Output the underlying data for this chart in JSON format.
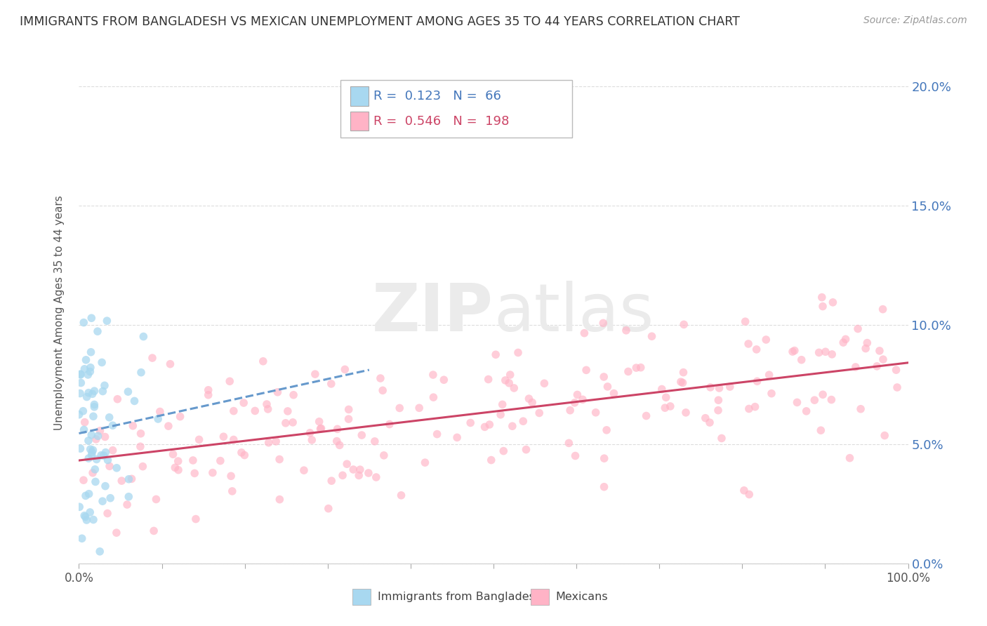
{
  "title": "IMMIGRANTS FROM BANGLADESH VS MEXICAN UNEMPLOYMENT AMONG AGES 35 TO 44 YEARS CORRELATION CHART",
  "source": "Source: ZipAtlas.com",
  "ylabel": "Unemployment Among Ages 35 to 44 years",
  "legend1_label": "Immigrants from Bangladesh",
  "legend2_label": "Mexicans",
  "R1": 0.123,
  "N1": 66,
  "R2": 0.546,
  "N2": 198,
  "color_bangladesh": "#A8D8F0",
  "color_mexico": "#FFB3C6",
  "trendline_color_bangladesh": "#6699CC",
  "trendline_color_mexico": "#CC4466",
  "watermark_zip": "ZIP",
  "watermark_atlas": "atlas",
  "bg_color": "#FFFFFF",
  "ymin": 0.0,
  "ymax": 0.21,
  "xmin": 0.0,
  "xmax": 1.0,
  "ytick_color": "#4477BB",
  "xtick_color": "#555555",
  "grid_color": "#DDDDDD",
  "title_color": "#333333",
  "source_color": "#999999",
  "ylabel_color": "#555555"
}
